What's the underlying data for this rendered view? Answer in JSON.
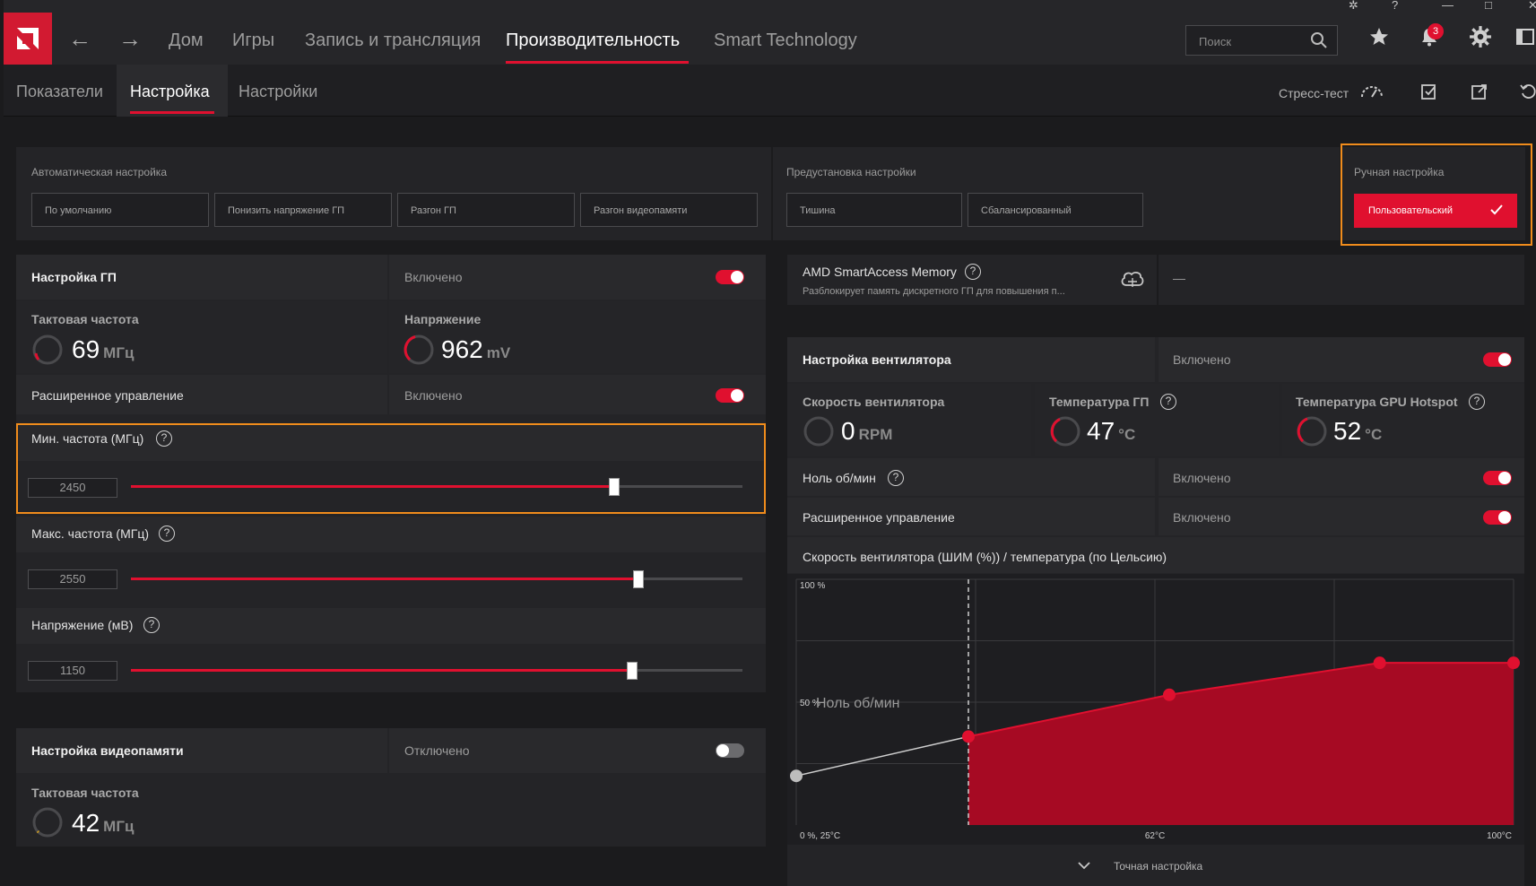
{
  "nav": {
    "items": [
      "Дом",
      "Игры",
      "Запись и трансляция",
      "Производительность",
      "Smart Technology"
    ],
    "search_placeholder": "Поиск",
    "notifications": "3"
  },
  "subnav": {
    "tabs": [
      "Показатели",
      "Настройка",
      "Настройки"
    ],
    "stress_test": "Стресс-тест"
  },
  "presets": {
    "auto_label": "Автоматическая настройка",
    "auto_buttons": [
      "По умолчанию",
      "Понизить напряжение ГП",
      "Разгон ГП",
      "Разгон видеопамяти"
    ],
    "preset_label": "Предустановка настройки",
    "preset_buttons": [
      "Тишина",
      "Сбалансированный"
    ],
    "manual_label": "Ручная настройка",
    "manual_button": "Пользовательский"
  },
  "gpu": {
    "title": "Настройка ГП",
    "state": "Включено",
    "clock_label": "Тактовая частота",
    "clock_value": "69",
    "clock_unit": "МГц",
    "voltage_label": "Напряжение",
    "voltage_value": "962",
    "voltage_unit": "mV",
    "advanced_label": "Расширенное управление",
    "advanced_state": "Включено",
    "min_freq_label": "Мин. частота (МГц)",
    "min_freq_value": "2450",
    "min_freq_fraction": 0.79,
    "max_freq_label": "Макс. частота (МГц)",
    "max_freq_value": "2550",
    "max_freq_fraction": 0.83,
    "voltage_slider_label": "Напряжение (мВ)",
    "voltage_slider_value": "1150",
    "voltage_slider_fraction": 0.82
  },
  "vram": {
    "title": "Настройка видеопамяти",
    "state": "Отключено",
    "clock_label": "Тактовая частота",
    "clock_value": "42",
    "clock_unit": "МГц"
  },
  "sam": {
    "title": "AMD SmartAccess Memory",
    "desc": "Разблокирует память дискретного ГП для повышения п...",
    "value": "—"
  },
  "fan": {
    "title": "Настройка вентилятора",
    "state": "Включено",
    "speed_label": "Скорость вентилятора",
    "speed_value": "0",
    "speed_unit": "RPM",
    "gpu_temp_label": "Температура ГП",
    "gpu_temp_value": "47",
    "gpu_temp_unit": "°C",
    "hotspot_label": "Температура GPU Hotspot",
    "hotspot_value": "52",
    "hotspot_unit": "°C",
    "zero_rpm_label": "Ноль об/мин",
    "zero_rpm_state": "Включено",
    "advanced_label": "Расширенное управление",
    "advanced_state": "Включено",
    "curve_title": "Скорость вентилятора (ШИМ (%)) / температура (по Цельсию)",
    "fine_tune": "Точная настройка"
  },
  "colors": {
    "accent": "#e0102f",
    "highlight": "#f08c1c",
    "bg": "#1b1b1d"
  },
  "chart_data": {
    "type": "area",
    "ylabel_top": "100 %",
    "ylabel_mid": "50 %",
    "xlabel_left": "0 %, 25°C",
    "xlabel_mid": "62°C",
    "xlabel_right": "100°C",
    "zero_rpm_annotation": "Ноль об/мин",
    "xlim": [
      25,
      100
    ],
    "ylim": [
      0,
      100
    ],
    "points": [
      {
        "x": 25,
        "y": 20,
        "active": false
      },
      {
        "x": 43,
        "y": 36,
        "active": true
      },
      {
        "x": 64,
        "y": 53,
        "active": true
      },
      {
        "x": 86,
        "y": 66,
        "active": true
      },
      {
        "x": 100,
        "y": 66,
        "active": true
      }
    ],
    "zero_rpm_x": 43
  }
}
